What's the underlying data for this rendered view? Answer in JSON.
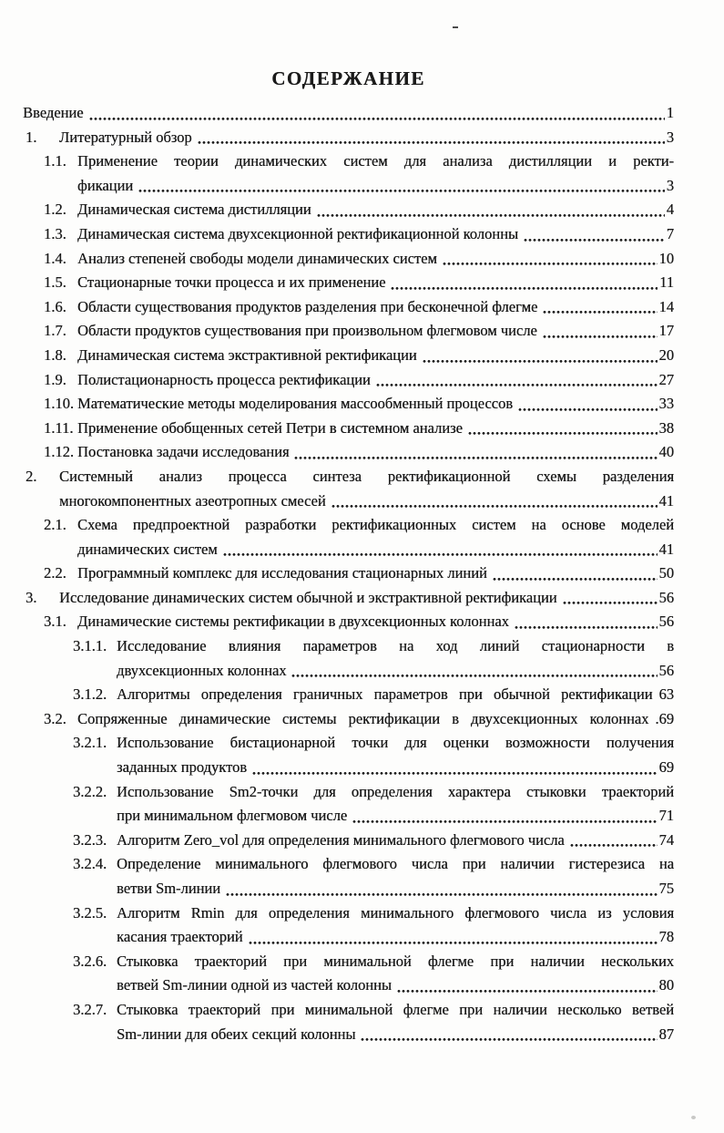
{
  "title": "СОДЕРЖАНИЕ",
  "toc": {
    "entries": [
      {
        "num": "",
        "level": 0,
        "pre_lines": [],
        "text": "Введение",
        "page": "1",
        "leader": true
      },
      {
        "num": "1.",
        "level": 1,
        "pre_lines": [],
        "text": "Литературный обзор",
        "page": "3",
        "leader": true
      },
      {
        "num": "1.1.",
        "level": 2,
        "pre_lines": [
          "Применение  теории динамических систем для анализа дистилляции и ректи-"
        ],
        "text": "фикации",
        "page": "3",
        "leader": true
      },
      {
        "num": "1.2.",
        "level": 2,
        "pre_lines": [],
        "text": "Динамическая система дистилляции",
        "page": "4",
        "leader": true
      },
      {
        "num": "1.3.",
        "level": 2,
        "pre_lines": [],
        "text": "Динамическая система двухсекционной ректификационной колонны",
        "page": "7",
        "leader": true
      },
      {
        "num": "1.4.",
        "level": 2,
        "pre_lines": [],
        "text": "Анализ степеней свободы модели динамических систем",
        "page": "10",
        "leader": true
      },
      {
        "num": "1.5.",
        "level": 2,
        "pre_lines": [],
        "text": "Стационарные точки процесса и их применение",
        "page": "11",
        "leader": true
      },
      {
        "num": "1.6.",
        "level": 2,
        "pre_lines": [],
        "text": "Области существования продуктов разделения при бесконечной флегме",
        "page": "14",
        "leader": true
      },
      {
        "num": "1.7.",
        "level": 2,
        "pre_lines": [],
        "text": "Области продуктов существования при произвольном флегмовом числе",
        "page": "17",
        "leader": true
      },
      {
        "num": "1.8.",
        "level": 2,
        "pre_lines": [],
        "text": "Динамическая система экстрактивной ректификации",
        "page": "20",
        "leader": true
      },
      {
        "num": "1.9.",
        "level": 2,
        "pre_lines": [],
        "text": "Полистационарность процесса ректификации",
        "page": "27",
        "leader": true
      },
      {
        "num": "1.10.",
        "level": 2,
        "pre_lines": [],
        "text": "Математические методы моделирования массообменный процессов",
        "page": "33",
        "leader": true
      },
      {
        "num": "1.11.",
        "level": 2,
        "pre_lines": [],
        "text": "Применение обобщенных сетей Петри в системном анализе",
        "page": "38",
        "leader": true
      },
      {
        "num": "1.12.",
        "level": 2,
        "pre_lines": [],
        "text": "Постановка задачи исследования",
        "page": "40",
        "leader": true
      },
      {
        "num": "2.",
        "level": 1,
        "pre_lines": [
          "Системный анализ процесса синтеза ректификационной схемы разделения"
        ],
        "text": "многокомпонентных азеотропных смесей",
        "page": "41",
        "leader": true
      },
      {
        "num": "2.1.",
        "level": 2,
        "pre_lines": [
          "Схема предпроектной разработки ректификационных систем на основе моделей"
        ],
        "text": "динамических систем",
        "page": "41",
        "leader": true
      },
      {
        "num": "2.2.",
        "level": 2,
        "pre_lines": [],
        "text": "Программный комплекс для исследования стационарных линий",
        "page": "50",
        "leader": true
      },
      {
        "num": "3.",
        "level": 1,
        "pre_lines": [],
        "text": "Исследование динамических систем обычной и экстрактивной ректификации",
        "page": "56",
        "leader": true
      },
      {
        "num": "3.1.",
        "level": 2,
        "pre_lines": [],
        "text": "Динамические системы ректификации в двухсекционных колоннах",
        "page": "56",
        "leader": true
      },
      {
        "num": "3.1.1.",
        "level": 3,
        "pre_lines": [
          "Исследование влияния параметров на ход линий стационарности в"
        ],
        "text": "двухсекционных колоннах",
        "page": "56",
        "leader": true
      },
      {
        "num": "3.1.2.",
        "level": 3,
        "pre_lines": [],
        "text": "Алгоритмы определения граничных параметров при обычной  ректификации",
        "page": "63",
        "leader": false
      },
      {
        "num": "3.2.",
        "level": 2,
        "pre_lines": [],
        "text": "Сопряженные динамические системы ректификации в двухсекционных колоннах",
        "page": ".69",
        "leader": false
      },
      {
        "num": "3.2.1.",
        "level": 3,
        "pre_lines": [
          "Использование бистационарной точки для оценки возможности получения"
        ],
        "text": "заданных продуктов",
        "page": "69",
        "leader": true
      },
      {
        "num": "3.2.2.",
        "level": 3,
        "pre_lines": [
          "Использование Sm2-точки для определения характера стыковки траекторий"
        ],
        "text": "при минимальном флегмовом числе",
        "page": "71",
        "leader": true
      },
      {
        "num": "3.2.3.",
        "level": 3,
        "pre_lines": [],
        "text": "Алгоритм Zero_vol для определения минимального флегмового числа",
        "page": "74",
        "leader": true
      },
      {
        "num": "3.2.4.",
        "level": 3,
        "pre_lines": [
          "Определение минимального флегмового числа при наличии гистерезиса на"
        ],
        "text": "ветви Sm-линии",
        "page": "75",
        "leader": true
      },
      {
        "num": "3.2.5.",
        "level": 3,
        "pre_lines": [
          "Алгоритм Rmin для определения минимального флегмового числа из условия"
        ],
        "text": "касания траекторий",
        "page": "78",
        "leader": true
      },
      {
        "num": "3.2.6.",
        "level": 3,
        "pre_lines": [
          "Стыковка траекторий при минимальной флегме при наличии нескольких"
        ],
        "text": "ветвей Sm-линии одной из частей колонны",
        "page": "80",
        "leader": true
      },
      {
        "num": "3.2.7.",
        "level": 3,
        "pre_lines": [
          "Стыковка траекторий при минимальной флегме при наличии несколько ветвей"
        ],
        "text": "Sm-линии для обеих секций колонны",
        "page": "87",
        "leader": true
      }
    ]
  }
}
